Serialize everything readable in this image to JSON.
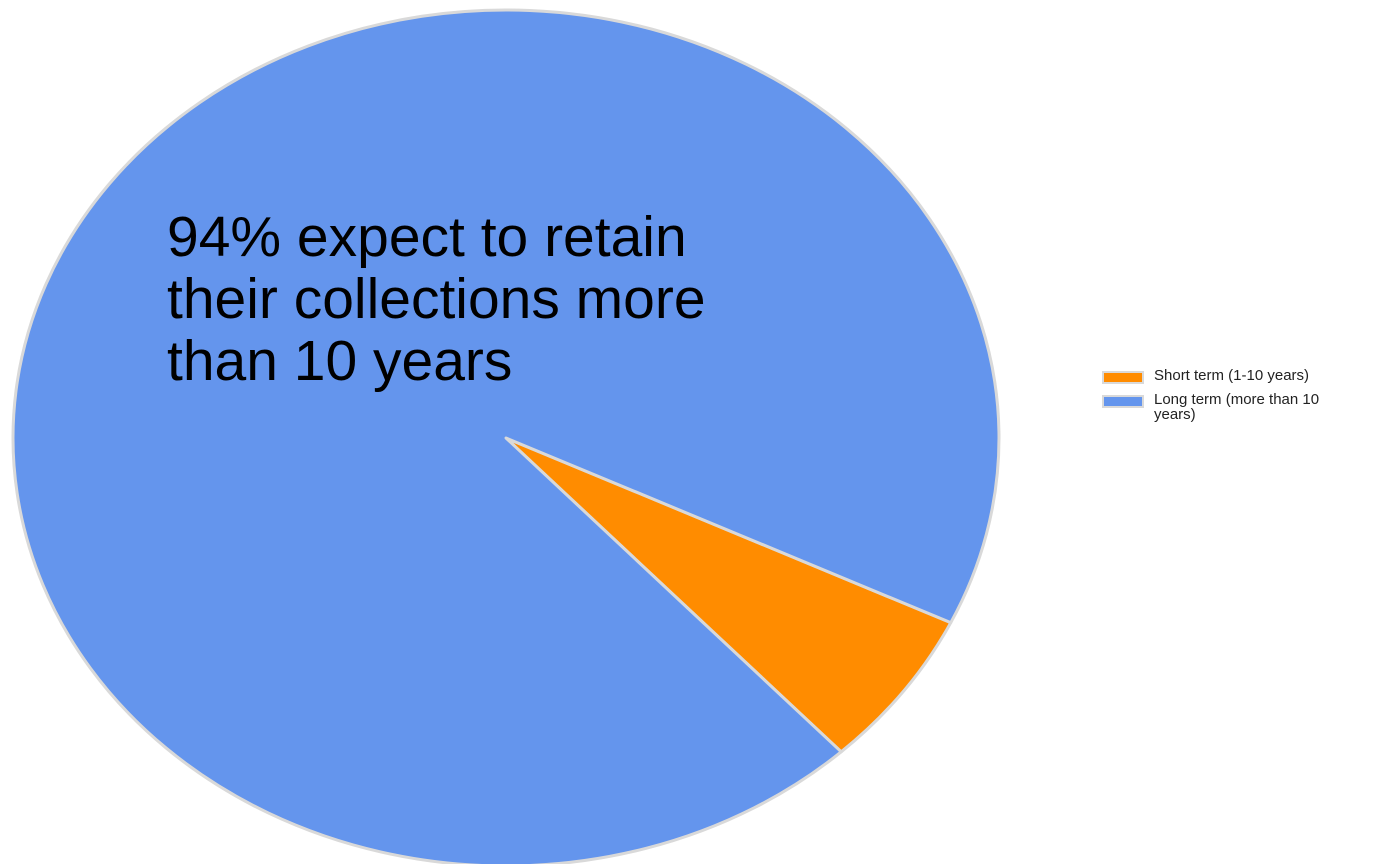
{
  "chart_data": {
    "type": "pie",
    "categories": [
      "Short term (1-10 years)",
      "Long term (more than 10 years)"
    ],
    "values": [
      6,
      94
    ],
    "colors": [
      "#ff8c00",
      "#6495ed"
    ],
    "slice_border_color": "#d9d9d9",
    "legend_position": "right",
    "annotation": "94% expect to retain their collections more than 10 years"
  }
}
